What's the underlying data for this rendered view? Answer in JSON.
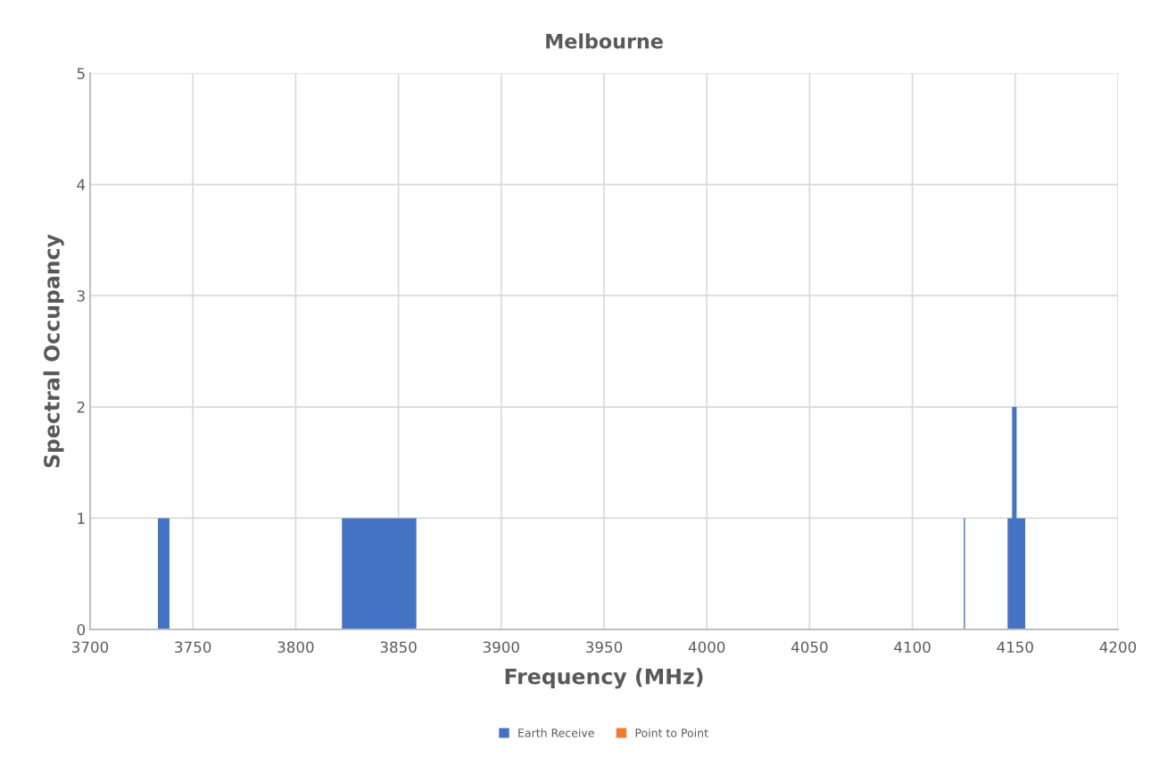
{
  "chart_data": {
    "type": "area",
    "title": "Melbourne",
    "xlabel": "Frequency (MHz)",
    "ylabel": "Spectral Occupancy",
    "xlim": [
      3700,
      4200
    ],
    "xticks": [
      3700,
      3750,
      3800,
      3850,
      3900,
      3950,
      4000,
      4050,
      4100,
      4150,
      4200
    ],
    "ylim": [
      0,
      5
    ],
    "yticks": [
      0,
      1,
      2,
      3,
      4,
      5
    ],
    "grid": true,
    "legend": "bottom",
    "series": [
      {
        "name": "Earth Receive",
        "color": "#4472c4",
        "x": [
          3700,
          3733,
          3733,
          3738.6,
          3738.6,
          3822.5,
          3822.5,
          3858.7,
          3858.7,
          4125,
          4125,
          4125.6,
          4125.6,
          4146.3,
          4146.3,
          4148.5,
          4148.5,
          4150.7,
          4150.7,
          4154.9,
          4154.9,
          4200
        ],
        "values": [
          0,
          0,
          1,
          1,
          0,
          0,
          1,
          1,
          0,
          0,
          1,
          1,
          0,
          0,
          1,
          1,
          2,
          2,
          1,
          1,
          0,
          0
        ]
      },
      {
        "name": "Point to Point",
        "color": "#ed7d31"
      }
    ]
  }
}
